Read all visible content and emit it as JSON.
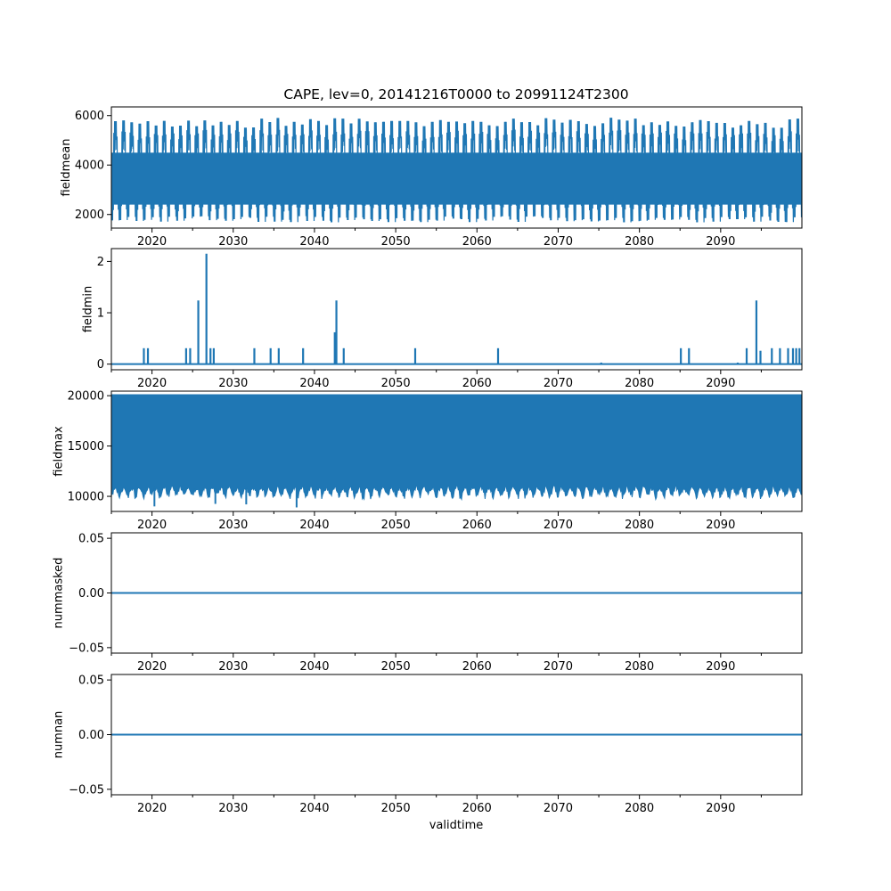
{
  "chart_data": {
    "title": "CAPE, lev=0, 20141216T0000 to 20991124T2300",
    "type": "line",
    "xlabel": "validtime",
    "xlim": [
      2015.0,
      2100.0
    ],
    "x_ticks": [
      2020,
      2030,
      2040,
      2050,
      2060,
      2070,
      2080,
      2090
    ],
    "x_tick_labels": [
      "2020",
      "2030",
      "2040",
      "2050",
      "2060",
      "2070",
      "2080",
      "2090"
    ],
    "series_color": "#1f77b4",
    "panels": [
      {
        "ylabel": "fieldmean",
        "ylim": [
          1450,
          6350
        ],
        "y_ticks": [
          2000,
          4000,
          6000
        ],
        "y_tick_labels": [
          "2000",
          "4000",
          "6000"
        ],
        "pattern": "annual-cycle",
        "typical_peak": 5750,
        "typical_trough": 1800,
        "band_high": 4500,
        "band_low": 2400
      },
      {
        "ylabel": "fieldmin",
        "ylim": [
          -0.11,
          2.25
        ],
        "y_ticks": [
          0,
          1,
          2
        ],
        "y_tick_labels": [
          "0",
          "1",
          "2"
        ],
        "pattern": "spikes",
        "baseline": 0,
        "spikes": [
          {
            "x": 2019.0,
            "y": 0.31
          },
          {
            "x": 2019.5,
            "y": 0.31
          },
          {
            "x": 2024.2,
            "y": 0.31
          },
          {
            "x": 2024.7,
            "y": 0.31
          },
          {
            "x": 2025.7,
            "y": 1.24
          },
          {
            "x": 2026.7,
            "y": 2.15
          },
          {
            "x": 2027.2,
            "y": 0.31
          },
          {
            "x": 2027.6,
            "y": 0.31
          },
          {
            "x": 2032.6,
            "y": 0.31
          },
          {
            "x": 2034.6,
            "y": 0.31
          },
          {
            "x": 2035.6,
            "y": 0.31
          },
          {
            "x": 2038.6,
            "y": 0.31
          },
          {
            "x": 2042.5,
            "y": 0.62
          },
          {
            "x": 2042.7,
            "y": 1.24
          },
          {
            "x": 2043.6,
            "y": 0.31
          },
          {
            "x": 2052.4,
            "y": 0.31
          },
          {
            "x": 2062.6,
            "y": 0.31
          },
          {
            "x": 2075.3,
            "y": 0.03
          },
          {
            "x": 2085.1,
            "y": 0.31
          },
          {
            "x": 2086.1,
            "y": 0.31
          },
          {
            "x": 2092.1,
            "y": 0.03
          },
          {
            "x": 2093.2,
            "y": 0.31
          },
          {
            "x": 2094.4,
            "y": 1.24
          },
          {
            "x": 2094.9,
            "y": 0.26
          },
          {
            "x": 2096.3,
            "y": 0.31
          },
          {
            "x": 2097.3,
            "y": 0.31
          },
          {
            "x": 2098.3,
            "y": 0.31
          },
          {
            "x": 2098.9,
            "y": 0.31
          },
          {
            "x": 2099.3,
            "y": 0.31
          },
          {
            "x": 2099.7,
            "y": 0.31
          }
        ]
      },
      {
        "ylabel": "fieldmax",
        "ylim": [
          8500,
          20450
        ],
        "y_ticks": [
          10000,
          15000,
          20000
        ],
        "y_tick_labels": [
          "10000",
          "15000",
          "20000"
        ],
        "pattern": "filled-band",
        "band_top": 20100,
        "typical_min": 10000,
        "lowest_min": 8900
      },
      {
        "ylabel": "nummasked",
        "ylim": [
          -0.055,
          0.055
        ],
        "y_ticks": [
          -0.05,
          0,
          0.05
        ],
        "y_tick_labels": [
          "−0.05",
          "0.00",
          "0.05"
        ],
        "pattern": "constant",
        "value": 0
      },
      {
        "ylabel": "numnan",
        "ylim": [
          -0.055,
          0.055
        ],
        "y_ticks": [
          -0.05,
          0,
          0.05
        ],
        "y_tick_labels": [
          "−0.05",
          "0.00",
          "0.05"
        ],
        "pattern": "constant",
        "value": 0
      }
    ]
  }
}
